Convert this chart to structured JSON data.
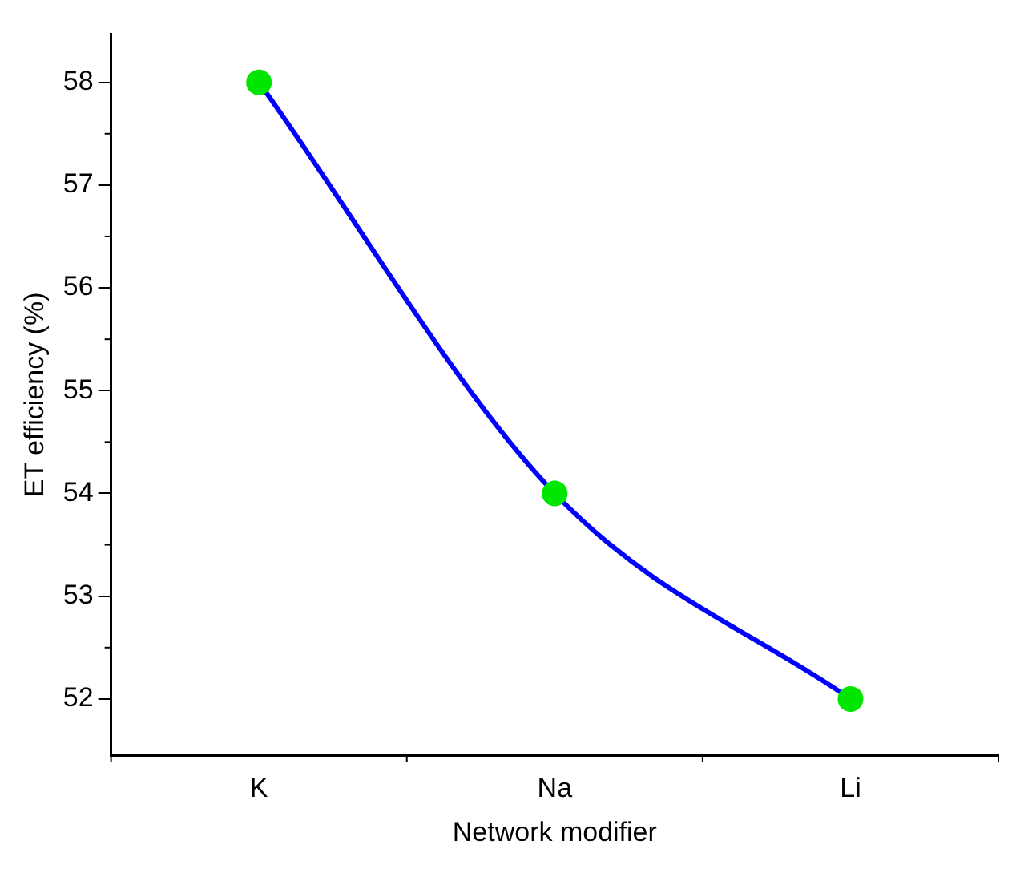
{
  "chart_data": {
    "type": "line",
    "xlabel": "Network modifier",
    "ylabel": "ET efficiency (%)",
    "categories": [
      "K",
      "Na",
      "Li"
    ],
    "series": [
      {
        "color": "#0000ff",
        "values": [
          58,
          54,
          52
        ],
        "marker": "none"
      },
      {
        "type": "scatter",
        "color": "#00e600",
        "values": [
          58,
          54,
          52
        ],
        "marker": "circle"
      }
    ],
    "ylim": [
      51.45,
      58.47
    ],
    "yticks": [
      52,
      53,
      54,
      55,
      56,
      57,
      58
    ],
    "grid": false,
    "legend": false
  }
}
